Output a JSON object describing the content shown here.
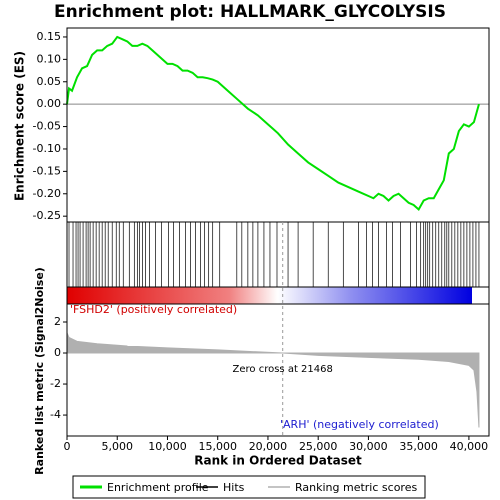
{
  "chart_data": [
    {
      "type": "line",
      "title": "Enrichment plot: HALLMARK_GLYCOLYSIS",
      "ylabel": "Enrichment score (ES)",
      "xlim": [
        0,
        42000
      ],
      "ylim": [
        -0.263,
        0.17
      ],
      "yticks": [
        0.15,
        {
          "value": 0.1,
          "label": "0.10"
        },
        0.05,
        {
          "value": 0,
          "label": "0.00"
        },
        -0.05,
        {
          "value": -0.1,
          "label": "-0.10"
        },
        -0.15,
        {
          "value": -0.2,
          "label": "-0.20"
        },
        -0.25
      ],
      "series": [
        {
          "name": "Enrichment profile",
          "color": "#00e000",
          "x": [
            0,
            200,
            500,
            1000,
            1500,
            2000,
            2500,
            3000,
            3500,
            4000,
            4500,
            5000,
            5500,
            6000,
            6500,
            7000,
            7500,
            8000,
            8500,
            9000,
            9500,
            10000,
            10500,
            11000,
            11500,
            12000,
            12500,
            13000,
            13500,
            14000,
            14500,
            15000,
            15500,
            16000,
            17000,
            18000,
            19000,
            20000,
            21000,
            22000,
            23000,
            24000,
            25000,
            26000,
            27000,
            28000,
            29000,
            30000,
            30500,
            31000,
            31500,
            32000,
            32500,
            33000,
            33500,
            34000,
            34500,
            35000,
            35500,
            36000,
            36500,
            37000,
            37500,
            38000,
            38500,
            39000,
            39500,
            40000,
            40500,
            41000
          ],
          "values": [
            0,
            0.035,
            0.03,
            0.06,
            0.08,
            0.085,
            0.11,
            0.12,
            0.12,
            0.13,
            0.135,
            0.15,
            0.145,
            0.14,
            0.13,
            0.13,
            0.135,
            0.13,
            0.12,
            0.11,
            0.1,
            0.09,
            0.09,
            0.085,
            0.075,
            0.075,
            0.07,
            0.06,
            0.06,
            0.058,
            0.055,
            0.05,
            0.04,
            0.03,
            0.01,
            -0.01,
            -0.025,
            -0.045,
            -0.065,
            -0.09,
            -0.11,
            -0.13,
            -0.145,
            -0.16,
            -0.175,
            -0.185,
            -0.195,
            -0.205,
            -0.21,
            -0.2,
            -0.205,
            -0.215,
            -0.205,
            -0.2,
            -0.21,
            -0.22,
            -0.225,
            -0.235,
            -0.215,
            -0.21,
            -0.21,
            -0.19,
            -0.17,
            -0.11,
            -0.1,
            -0.06,
            -0.045,
            -0.05,
            -0.04,
            0
          ]
        }
      ]
    },
    {
      "type": "rug",
      "xlim": [
        0,
        42000
      ],
      "series": [
        {
          "name": "Hits",
          "color": "#000000",
          "x": [
            200,
            600,
            900,
            1100,
            1300,
            1600,
            1900,
            2100,
            2300,
            2600,
            2900,
            3200,
            3500,
            3800,
            4100,
            4500,
            4900,
            5200,
            5600,
            6200,
            6700,
            7000,
            7200,
            7500,
            7800,
            8200,
            8800,
            9400,
            10100,
            10600,
            11200,
            11800,
            12300,
            12800,
            13300,
            13700,
            14100,
            14500,
            15200,
            16900,
            17400,
            18000,
            18500,
            19000,
            19600,
            20200,
            20900,
            22000,
            23000,
            24500,
            26000,
            27500,
            29000,
            29800,
            30400,
            31000,
            31800,
            32400,
            33200,
            34200,
            34800,
            35200,
            35500,
            35700,
            35900,
            36100,
            36400,
            36700,
            37000,
            37300,
            37600,
            37800,
            38000,
            38300,
            38600,
            38900,
            39200,
            39500,
            39800,
            40100,
            40400,
            40700,
            41000
          ]
        }
      ]
    },
    {
      "type": "area",
      "ylabel": "Ranked list metric (Signal2Noise)",
      "xlabel": "Rank in Ordered Dataset",
      "xlim": [
        0,
        42000
      ],
      "ylim": [
        -5.35,
        3.16
      ],
      "xticks": [
        0,
        {
          "value": 5000,
          "label": "5,000"
        },
        {
          "value": 10000,
          "label": "10,000"
        },
        {
          "value": 15000,
          "label": "15,000"
        },
        {
          "value": 20000,
          "label": "20,000"
        },
        {
          "value": 25000,
          "label": "25,000"
        },
        {
          "value": 30000,
          "label": "30,000"
        },
        {
          "value": 35000,
          "label": "35,000"
        },
        {
          "value": 40000,
          "label": "40,000"
        }
      ],
      "yticks": [
        2,
        0,
        -2,
        -4
      ],
      "zero_cross": 21468,
      "annotations": [
        "'FSHD2' (positively correlated)",
        "Zero cross at 21468",
        "'ARH' (negatively correlated)"
      ],
      "series": [
        {
          "name": "Ranking metric scores",
          "color": "#b0b0b0",
          "x": [
            0,
            200,
            1000,
            3000,
            6000,
            10000,
            15000,
            21468,
            25000,
            30000,
            35000,
            38000,
            40000,
            40500,
            40800,
            41000
          ],
          "values": [
            1.3,
            1.0,
            0.75,
            0.6,
            0.45,
            0.33,
            0.2,
            0,
            -0.15,
            -0.28,
            -0.4,
            -0.55,
            -0.8,
            -1.1,
            -2.5,
            -4.8
          ]
        }
      ]
    }
  ]
}
